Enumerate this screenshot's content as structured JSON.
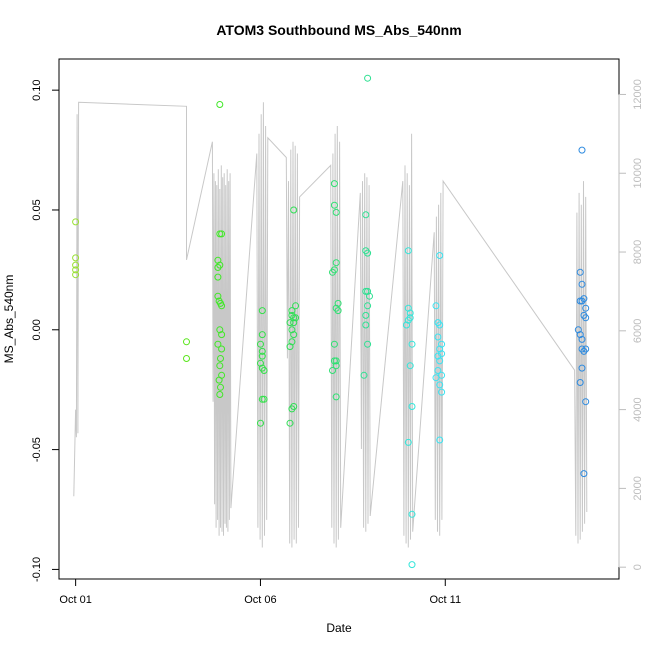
{
  "chart_data": {
    "type": "scatter",
    "title": "ATOM3 Southbound MS_Abs_540nm",
    "xlabel": "Date",
    "ylabel": "MS_Abs_540nm",
    "x_ticks": [
      {
        "day": 1,
        "label": "Oct 01"
      },
      {
        "day": 6,
        "label": "Oct 06"
      },
      {
        "day": 11,
        "label": "Oct 11"
      }
    ],
    "y_ticks": [
      {
        "value": -0.1,
        "label": "-0.10"
      },
      {
        "value": -0.05,
        "label": "-0.05"
      },
      {
        "value": 0.0,
        "label": "0.00"
      },
      {
        "value": 0.05,
        "label": "0.05"
      },
      {
        "value": 0.1,
        "label": "0.10"
      }
    ],
    "y2_ticks": [
      {
        "value": 0,
        "label": "0"
      },
      {
        "value": 2000,
        "label": "2000"
      },
      {
        "value": 4000,
        "label": "4000"
      },
      {
        "value": 6000,
        "label": "6000"
      },
      {
        "value": 8000,
        "label": "8000"
      },
      {
        "value": 10000,
        "label": "10000"
      },
      {
        "value": 12000,
        "label": "12000"
      }
    ],
    "xlim": [
      0.55,
      15.7
    ],
    "ylim": [
      -0.104,
      0.113
    ],
    "y2lim": [
      -300,
      12900
    ],
    "grid": false,
    "points": [
      {
        "x": 1.0,
        "y": 0.045,
        "color": "#99e033"
      },
      {
        "x": 1.0,
        "y": 0.03,
        "color": "#99e033"
      },
      {
        "x": 1.0,
        "y": 0.027,
        "color": "#99e033"
      },
      {
        "x": 1.0,
        "y": 0.025,
        "color": "#99e033"
      },
      {
        "x": 1.0,
        "y": 0.023,
        "color": "#99e033"
      },
      {
        "x": 4.0,
        "y": -0.005,
        "color": "#5ae61c"
      },
      {
        "x": 4.0,
        "y": -0.012,
        "color": "#5ae61c"
      },
      {
        "x": 4.9,
        "y": 0.094,
        "color": "#40e827"
      },
      {
        "x": 4.9,
        "y": 0.04,
        "color": "#40e827"
      },
      {
        "x": 4.95,
        "y": 0.04,
        "color": "#40e827"
      },
      {
        "x": 4.85,
        "y": 0.029,
        "color": "#40e827"
      },
      {
        "x": 4.85,
        "y": 0.026,
        "color": "#40e827"
      },
      {
        "x": 4.9,
        "y": 0.027,
        "color": "#40e827"
      },
      {
        "x": 4.85,
        "y": 0.022,
        "color": "#40e827"
      },
      {
        "x": 4.85,
        "y": 0.014,
        "color": "#40e827"
      },
      {
        "x": 4.88,
        "y": 0.012,
        "color": "#40e827"
      },
      {
        "x": 4.92,
        "y": 0.011,
        "color": "#40e827"
      },
      {
        "x": 4.95,
        "y": 0.01,
        "color": "#40e827"
      },
      {
        "x": 4.9,
        "y": 0.0,
        "color": "#40e827"
      },
      {
        "x": 4.95,
        "y": -0.002,
        "color": "#40e827"
      },
      {
        "x": 4.85,
        "y": -0.006,
        "color": "#40e827"
      },
      {
        "x": 4.95,
        "y": -0.008,
        "color": "#40e827"
      },
      {
        "x": 4.92,
        "y": -0.012,
        "color": "#40e827"
      },
      {
        "x": 4.9,
        "y": -0.015,
        "color": "#40e827"
      },
      {
        "x": 4.95,
        "y": -0.019,
        "color": "#40e827"
      },
      {
        "x": 4.88,
        "y": -0.021,
        "color": "#40e827"
      },
      {
        "x": 4.92,
        "y": -0.024,
        "color": "#40e827"
      },
      {
        "x": 4.9,
        "y": -0.027,
        "color": "#40e827"
      },
      {
        "x": 6.05,
        "y": 0.008,
        "color": "#33e04a"
      },
      {
        "x": 6.05,
        "y": -0.002,
        "color": "#33e04a"
      },
      {
        "x": 6.0,
        "y": -0.006,
        "color": "#33e04a"
      },
      {
        "x": 6.05,
        "y": -0.009,
        "color": "#33e04a"
      },
      {
        "x": 6.05,
        "y": -0.011,
        "color": "#33e04a"
      },
      {
        "x": 6.0,
        "y": -0.014,
        "color": "#33e04a"
      },
      {
        "x": 6.05,
        "y": -0.016,
        "color": "#33e04a"
      },
      {
        "x": 6.1,
        "y": -0.017,
        "color": "#33e04a"
      },
      {
        "x": 6.05,
        "y": -0.029,
        "color": "#33e04a"
      },
      {
        "x": 6.1,
        "y": -0.029,
        "color": "#33e04a"
      },
      {
        "x": 6.0,
        "y": -0.039,
        "color": "#33e04a"
      },
      {
        "x": 6.9,
        "y": 0.05,
        "color": "#30de55"
      },
      {
        "x": 6.95,
        "y": 0.01,
        "color": "#30de55"
      },
      {
        "x": 6.85,
        "y": 0.008,
        "color": "#30de55"
      },
      {
        "x": 6.85,
        "y": 0.006,
        "color": "#30de55"
      },
      {
        "x": 6.9,
        "y": 0.005,
        "color": "#30de55"
      },
      {
        "x": 6.95,
        "y": 0.005,
        "color": "#30de55"
      },
      {
        "x": 6.8,
        "y": 0.003,
        "color": "#30de55"
      },
      {
        "x": 6.9,
        "y": 0.003,
        "color": "#30de55"
      },
      {
        "x": 6.85,
        "y": 0.0,
        "color": "#30de55"
      },
      {
        "x": 6.9,
        "y": -0.002,
        "color": "#30de55"
      },
      {
        "x": 6.85,
        "y": -0.005,
        "color": "#30de55"
      },
      {
        "x": 6.8,
        "y": -0.007,
        "color": "#30de55"
      },
      {
        "x": 6.85,
        "y": -0.033,
        "color": "#30de55"
      },
      {
        "x": 6.9,
        "y": -0.032,
        "color": "#30de55"
      },
      {
        "x": 6.8,
        "y": -0.039,
        "color": "#30de55"
      },
      {
        "x": 8.0,
        "y": 0.061,
        "color": "#2fe072"
      },
      {
        "x": 8.0,
        "y": 0.052,
        "color": "#2fe072"
      },
      {
        "x": 8.05,
        "y": 0.049,
        "color": "#2fe072"
      },
      {
        "x": 8.05,
        "y": 0.028,
        "color": "#2fe072"
      },
      {
        "x": 8.0,
        "y": 0.025,
        "color": "#2fe072"
      },
      {
        "x": 7.95,
        "y": 0.024,
        "color": "#2fe072"
      },
      {
        "x": 8.1,
        "y": 0.011,
        "color": "#2fe072"
      },
      {
        "x": 8.05,
        "y": 0.009,
        "color": "#2fe072"
      },
      {
        "x": 8.1,
        "y": 0.008,
        "color": "#2fe072"
      },
      {
        "x": 8.0,
        "y": -0.006,
        "color": "#2fe072"
      },
      {
        "x": 8.05,
        "y": -0.013,
        "color": "#2fe072"
      },
      {
        "x": 8.0,
        "y": -0.013,
        "color": "#2fe072"
      },
      {
        "x": 7.95,
        "y": -0.017,
        "color": "#2fe072"
      },
      {
        "x": 8.05,
        "y": -0.015,
        "color": "#2fe072"
      },
      {
        "x": 8.05,
        "y": -0.028,
        "color": "#2fe072"
      },
      {
        "x": 8.9,
        "y": 0.105,
        "color": "#2ee092"
      },
      {
        "x": 8.85,
        "y": 0.048,
        "color": "#2ee092"
      },
      {
        "x": 8.85,
        "y": 0.033,
        "color": "#2ee092"
      },
      {
        "x": 8.9,
        "y": 0.032,
        "color": "#2ee092"
      },
      {
        "x": 8.85,
        "y": 0.016,
        "color": "#2ee092"
      },
      {
        "x": 8.9,
        "y": 0.016,
        "color": "#2ee092"
      },
      {
        "x": 8.95,
        "y": 0.014,
        "color": "#2ee092"
      },
      {
        "x": 8.9,
        "y": 0.01,
        "color": "#2ee092"
      },
      {
        "x": 8.85,
        "y": 0.006,
        "color": "#2ee092"
      },
      {
        "x": 8.85,
        "y": 0.002,
        "color": "#2ee092"
      },
      {
        "x": 8.9,
        "y": -0.006,
        "color": "#2ee092"
      },
      {
        "x": 8.8,
        "y": -0.019,
        "color": "#2ee092"
      },
      {
        "x": 10.0,
        "y": 0.033,
        "color": "#33e6da"
      },
      {
        "x": 10.0,
        "y": 0.009,
        "color": "#33e6da"
      },
      {
        "x": 10.05,
        "y": 0.007,
        "color": "#33e6da"
      },
      {
        "x": 10.05,
        "y": 0.005,
        "color": "#33e6da"
      },
      {
        "x": 10.0,
        "y": 0.004,
        "color": "#33e6da"
      },
      {
        "x": 9.95,
        "y": 0.002,
        "color": "#33e6da"
      },
      {
        "x": 10.1,
        "y": -0.006,
        "color": "#33e6da"
      },
      {
        "x": 10.05,
        "y": -0.015,
        "color": "#33e6da"
      },
      {
        "x": 10.1,
        "y": -0.032,
        "color": "#33e6da"
      },
      {
        "x": 10.0,
        "y": -0.047,
        "color": "#33e6da"
      },
      {
        "x": 10.1,
        "y": -0.077,
        "color": "#33e6da"
      },
      {
        "x": 10.1,
        "y": -0.098,
        "color": "#33e6da"
      },
      {
        "x": 10.85,
        "y": 0.031,
        "color": "#3be3f1"
      },
      {
        "x": 10.75,
        "y": 0.01,
        "color": "#3be3f1"
      },
      {
        "x": 10.8,
        "y": 0.003,
        "color": "#3be3f1"
      },
      {
        "x": 10.85,
        "y": 0.002,
        "color": "#3be3f1"
      },
      {
        "x": 10.8,
        "y": -0.003,
        "color": "#3be3f1"
      },
      {
        "x": 10.9,
        "y": -0.006,
        "color": "#3be3f1"
      },
      {
        "x": 10.85,
        "y": -0.008,
        "color": "#3be3f1"
      },
      {
        "x": 10.9,
        "y": -0.01,
        "color": "#3be3f1"
      },
      {
        "x": 10.8,
        "y": -0.011,
        "color": "#3be3f1"
      },
      {
        "x": 10.85,
        "y": -0.013,
        "color": "#3be3f1"
      },
      {
        "x": 10.8,
        "y": -0.017,
        "color": "#3be3f1"
      },
      {
        "x": 10.9,
        "y": -0.019,
        "color": "#3be3f1"
      },
      {
        "x": 10.75,
        "y": -0.02,
        "color": "#3be3f1"
      },
      {
        "x": 10.85,
        "y": -0.023,
        "color": "#3be3f1"
      },
      {
        "x": 10.9,
        "y": -0.026,
        "color": "#3be3f1"
      },
      {
        "x": 10.85,
        "y": -0.046,
        "color": "#3be3f1"
      },
      {
        "x": 14.7,
        "y": 0.075,
        "color": "#2e8be0"
      },
      {
        "x": 14.65,
        "y": 0.024,
        "color": "#2e8be0"
      },
      {
        "x": 14.7,
        "y": 0.019,
        "color": "#2e8be0"
      },
      {
        "x": 14.75,
        "y": 0.013,
        "color": "#2e8be0"
      },
      {
        "x": 14.65,
        "y": 0.012,
        "color": "#2e8be0"
      },
      {
        "x": 14.7,
        "y": 0.012,
        "color": "#2e8be0"
      },
      {
        "x": 14.8,
        "y": 0.009,
        "color": "#2e8be0"
      },
      {
        "x": 14.75,
        "y": 0.006,
        "color": "#2e8be0"
      },
      {
        "x": 14.8,
        "y": 0.005,
        "color": "#2e8be0"
      },
      {
        "x": 14.6,
        "y": 0.0,
        "color": "#2e8be0"
      },
      {
        "x": 14.65,
        "y": -0.002,
        "color": "#2e8be0"
      },
      {
        "x": 14.7,
        "y": -0.004,
        "color": "#2e8be0"
      },
      {
        "x": 14.7,
        "y": -0.008,
        "color": "#2e8be0"
      },
      {
        "x": 14.75,
        "y": -0.009,
        "color": "#2e8be0"
      },
      {
        "x": 14.8,
        "y": -0.008,
        "color": "#2e8be0"
      },
      {
        "x": 14.7,
        "y": -0.016,
        "color": "#2e8be0"
      },
      {
        "x": 14.65,
        "y": -0.022,
        "color": "#2e8be0"
      },
      {
        "x": 14.8,
        "y": -0.03,
        "color": "#2e8be0"
      },
      {
        "x": 14.75,
        "y": -0.06,
        "color": "#2e8be0"
      }
    ],
    "depth_series": {
      "color": "#c8c8c8",
      "points": [
        [
          0.95,
          1800
        ],
        [
          1.0,
          4000
        ],
        [
          1.02,
          3300
        ],
        [
          1.04,
          11500
        ],
        [
          1.06,
          3400
        ],
        [
          1.08,
          11800
        ],
        [
          4.0,
          11700
        ],
        [
          4.0,
          7800
        ],
        [
          4.7,
          10800
        ],
        [
          4.72,
          4200
        ],
        [
          4.74,
          10000
        ],
        [
          4.76,
          1600
        ],
        [
          4.78,
          9800
        ],
        [
          4.8,
          1000
        ],
        [
          4.82,
          9700
        ],
        [
          4.84,
          1200
        ],
        [
          4.86,
          10100
        ],
        [
          4.88,
          800
        ],
        [
          4.9,
          9600
        ],
        [
          4.92,
          1000
        ],
        [
          4.94,
          10200
        ],
        [
          4.96,
          900
        ],
        [
          4.98,
          9900
        ],
        [
          5.0,
          800
        ],
        [
          5.02,
          10000
        ],
        [
          5.04,
          1100
        ],
        [
          5.06,
          9700
        ],
        [
          5.08,
          1000
        ],
        [
          5.1,
          10100
        ],
        [
          5.12,
          900
        ],
        [
          5.14,
          9800
        ],
        [
          5.16,
          1200
        ],
        [
          5.18,
          10000
        ],
        [
          5.2,
          1500
        ],
        [
          5.9,
          10500
        ],
        [
          5.93,
          1000
        ],
        [
          5.96,
          11000
        ],
        [
          5.99,
          700
        ],
        [
          6.02,
          11500
        ],
        [
          6.05,
          500
        ],
        [
          6.08,
          11800
        ],
        [
          6.11,
          800
        ],
        [
          6.14,
          11200
        ],
        [
          6.17,
          1200
        ],
        [
          6.2,
          10900
        ],
        [
          6.7,
          10400
        ],
        [
          6.73,
          5300
        ],
        [
          6.76,
          9800
        ],
        [
          6.79,
          600
        ],
        [
          6.82,
          10600
        ],
        [
          6.85,
          500
        ],
        [
          6.88,
          10800
        ],
        [
          6.91,
          700
        ],
        [
          6.94,
          10700
        ],
        [
          6.97,
          600
        ],
        [
          7.0,
          10500
        ],
        [
          7.03,
          1000
        ],
        [
          7.06,
          9400
        ],
        [
          7.9,
          10200
        ],
        [
          7.93,
          1000
        ],
        [
          7.96,
          10500
        ],
        [
          7.99,
          600
        ],
        [
          8.02,
          11000
        ],
        [
          8.05,
          500
        ],
        [
          8.08,
          11200
        ],
        [
          8.11,
          700
        ],
        [
          8.14,
          10800
        ],
        [
          8.17,
          1000
        ],
        [
          8.7,
          9500
        ],
        [
          8.73,
          3000
        ],
        [
          8.76,
          9800
        ],
        [
          8.79,
          1000
        ],
        [
          8.82,
          10000
        ],
        [
          8.85,
          900
        ],
        [
          8.88,
          9900
        ],
        [
          8.91,
          1100
        ],
        [
          8.94,
          9700
        ],
        [
          8.97,
          1300
        ],
        [
          9.85,
          9800
        ],
        [
          9.88,
          800
        ],
        [
          9.91,
          10200
        ],
        [
          9.94,
          600
        ],
        [
          9.97,
          10000
        ],
        [
          10.0,
          500
        ],
        [
          10.03,
          9700
        ],
        [
          10.06,
          700
        ],
        [
          10.09,
          11000
        ],
        [
          10.12,
          900
        ],
        [
          10.7,
          8500
        ],
        [
          10.73,
          1200
        ],
        [
          10.76,
          8900
        ],
        [
          10.79,
          900
        ],
        [
          10.82,
          9200
        ],
        [
          10.85,
          800
        ],
        [
          10.88,
          9500
        ],
        [
          10.91,
          1200
        ],
        [
          10.94,
          9800
        ],
        [
          14.5,
          5000
        ],
        [
          14.53,
          800
        ],
        [
          14.56,
          9000
        ],
        [
          14.59,
          600
        ],
        [
          14.62,
          9500
        ],
        [
          14.65,
          700
        ],
        [
          14.68,
          9200
        ],
        [
          14.71,
          900
        ],
        [
          14.74,
          9800
        ],
        [
          14.77,
          1100
        ],
        [
          14.8,
          9400
        ],
        [
          14.83,
          1400
        ]
      ]
    }
  }
}
